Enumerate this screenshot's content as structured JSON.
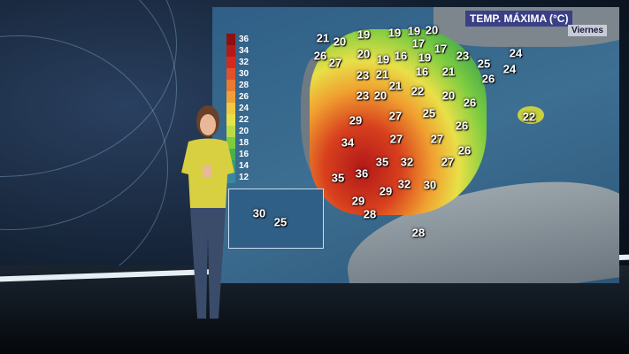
{
  "header": {
    "title": "TEMP. MÁXIMA (°C)",
    "day": "Viernes"
  },
  "legend": {
    "values": [
      "36",
      "34",
      "32",
      "30",
      "28",
      "26",
      "24",
      "22",
      "20",
      "18",
      "16",
      "14",
      "12"
    ],
    "colors": [
      "#8e1010",
      "#b51a1a",
      "#d42a1e",
      "#e0502a",
      "#ea7a30",
      "#f0a038",
      "#f4c840",
      "#e8e048",
      "#b8dc48",
      "#7ccc40",
      "#48b050",
      "#3a9a70",
      "#3a86a0"
    ]
  },
  "temperatures": [
    "21",
    "20",
    "19",
    "19",
    "19",
    "20",
    "17",
    "17",
    "20",
    "19",
    "16",
    "19",
    "23",
    "25",
    "24",
    "24",
    "26",
    "27",
    "16",
    "21",
    "26",
    "23",
    "21",
    "21",
    "22",
    "23",
    "20",
    "20",
    "26",
    "29",
    "27",
    "25",
    "26",
    "22",
    "34",
    "27",
    "27",
    "26",
    "35",
    "32",
    "27",
    "36",
    "35",
    "32",
    "30",
    "29",
    "29",
    "28",
    "28",
    "30",
    "25"
  ]
}
